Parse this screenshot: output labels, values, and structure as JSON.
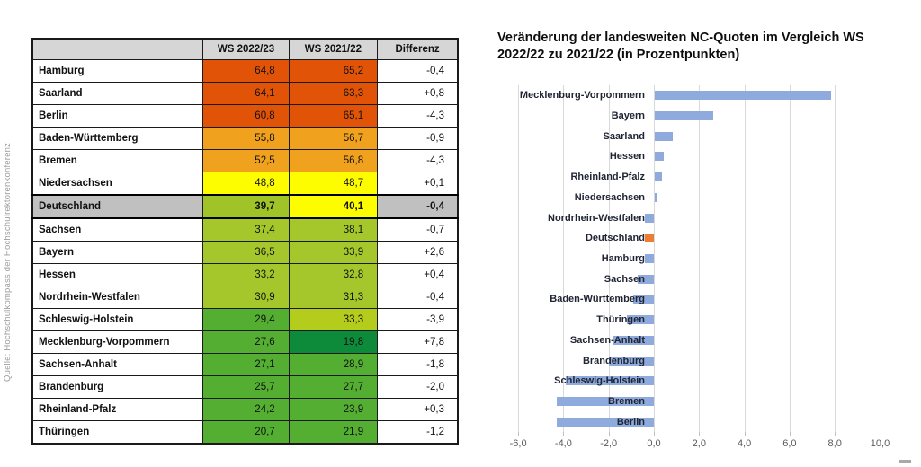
{
  "source_note": "Quelle: Hochschulkompass der Hochschulrektorenkonferenz",
  "table": {
    "columns": [
      "",
      "WS 2022/23",
      "WS 2021/22",
      "Differenz"
    ],
    "rows": [
      {
        "name": "Hamburg",
        "ws2223": "64,8",
        "ws2122": "65,2",
        "diff": "-0,4",
        "color_2223": "#e15408",
        "color_2122": "#e15408",
        "highlight": false
      },
      {
        "name": "Saarland",
        "ws2223": "64,1",
        "ws2122": "63,3",
        "diff": "+0,8",
        "color_2223": "#e15408",
        "color_2122": "#e15408",
        "highlight": false
      },
      {
        "name": "Berlin",
        "ws2223": "60,8",
        "ws2122": "65,1",
        "diff": "-4,3",
        "color_2223": "#e15408",
        "color_2122": "#e15408",
        "highlight": false
      },
      {
        "name": "Baden-Württemberg",
        "ws2223": "55,8",
        "ws2122": "56,7",
        "diff": "-0,9",
        "color_2223": "#f0a11e",
        "color_2122": "#f0a11e",
        "highlight": false
      },
      {
        "name": "Bremen",
        "ws2223": "52,5",
        "ws2122": "56,8",
        "diff": "-4,3",
        "color_2223": "#f0a11e",
        "color_2122": "#f0a11e",
        "highlight": false
      },
      {
        "name": "Niedersachsen",
        "ws2223": "48,8",
        "ws2122": "48,7",
        "diff": "+0,1",
        "color_2223": "#fdfd00",
        "color_2122": "#fdfd00",
        "highlight": false
      },
      {
        "name": "Deutschland",
        "ws2223": "39,7",
        "ws2122": "40,1",
        "diff": "-0,4",
        "color_2223": "#a0c428",
        "color_2122": "#fdfd00",
        "highlight": true
      },
      {
        "name": "Sachsen",
        "ws2223": "37,4",
        "ws2122": "38,1",
        "diff": "-0,7",
        "color_2223": "#a5c72b",
        "color_2122": "#a5c72b",
        "highlight": false
      },
      {
        "name": "Bayern",
        "ws2223": "36,5",
        "ws2122": "33,9",
        "diff": "+2,6",
        "color_2223": "#a5c72b",
        "color_2122": "#a5c72b",
        "highlight": false
      },
      {
        "name": "Hessen",
        "ws2223": "33,2",
        "ws2122": "32,8",
        "diff": "+0,4",
        "color_2223": "#a5c72b",
        "color_2122": "#a5c72b",
        "highlight": false
      },
      {
        "name": "Nordrhein-Westfalen",
        "ws2223": "30,9",
        "ws2122": "31,3",
        "diff": "-0,4",
        "color_2223": "#a5c72b",
        "color_2122": "#a5c72b",
        "highlight": false
      },
      {
        "name": "Schleswig-Holstein",
        "ws2223": "29,4",
        "ws2122": "33,3",
        "diff": "-3,9",
        "color_2223": "#53ae32",
        "color_2122": "#b4cc1c",
        "highlight": false
      },
      {
        "name": "Mecklenburg-Vorpommern",
        "ws2223": "27,6",
        "ws2122": "19,8",
        "diff": "+7,8",
        "color_2223": "#53ae32",
        "color_2122": "#0e8a3b",
        "highlight": false
      },
      {
        "name": "Sachsen-Anhalt",
        "ws2223": "27,1",
        "ws2122": "28,9",
        "diff": "-1,8",
        "color_2223": "#53ae32",
        "color_2122": "#53ae32",
        "highlight": false
      },
      {
        "name": "Brandenburg",
        "ws2223": "25,7",
        "ws2122": "27,7",
        "diff": "-2,0",
        "color_2223": "#53ae32",
        "color_2122": "#53ae32",
        "highlight": false
      },
      {
        "name": "Rheinland-Pfalz",
        "ws2223": "24,2",
        "ws2122": "23,9",
        "diff": "+0,3",
        "color_2223": "#53ae32",
        "color_2122": "#53ae32",
        "highlight": false
      },
      {
        "name": "Thüringen",
        "ws2223": "20,7",
        "ws2122": "21,9",
        "diff": "-1,2",
        "color_2223": "#53ae32",
        "color_2122": "#53ae32",
        "highlight": false
      }
    ]
  },
  "chart_data": {
    "type": "bar",
    "orientation": "horizontal",
    "title": "Veränderung der landesweiten NC-Quoten im Vergleich WS 2022/22 zu 2021/22 (in Prozentpunkten)",
    "categories": [
      "Mecklenburg-Vorpommern",
      "Bayern",
      "Saarland",
      "Hessen",
      "Rheinland-Pfalz",
      "Niedersachsen",
      "Nordrhein-Westfalen",
      "Deutschland",
      "Hamburg",
      "Sachsen",
      "Baden-Württemberg",
      "Thüringen",
      "Sachsen-Anhalt",
      "Brandenburg",
      "Schleswig-Holstein",
      "Bremen",
      "Berlin"
    ],
    "values": [
      7.8,
      2.6,
      0.8,
      0.4,
      0.3,
      0.1,
      -0.4,
      -0.4,
      -0.4,
      -0.7,
      -0.9,
      -1.2,
      -1.8,
      -2.0,
      -3.9,
      -4.3,
      -4.3
    ],
    "highlight_category": "Deutschland",
    "xlim": [
      -6,
      10
    ],
    "xtick_values": [
      -6,
      -4,
      -2,
      0,
      2,
      4,
      6,
      8,
      10
    ],
    "xtick_labels": [
      "-6,0",
      "-4,0",
      "-2,0",
      "0,0",
      "2,0",
      "4,0",
      "6,0",
      "8,0",
      "10,0"
    ],
    "grid": "vertical",
    "legend": "none"
  },
  "colors": {
    "bar": "#8faadc",
    "bar_highlight": "#ed7d31",
    "gridline": "#d9d9d9",
    "axis_text": "#595959",
    "category_text": "#1f2433",
    "table_header_bg": "#d6d6d6",
    "highlight_row_bg": "#c0c0c0"
  }
}
